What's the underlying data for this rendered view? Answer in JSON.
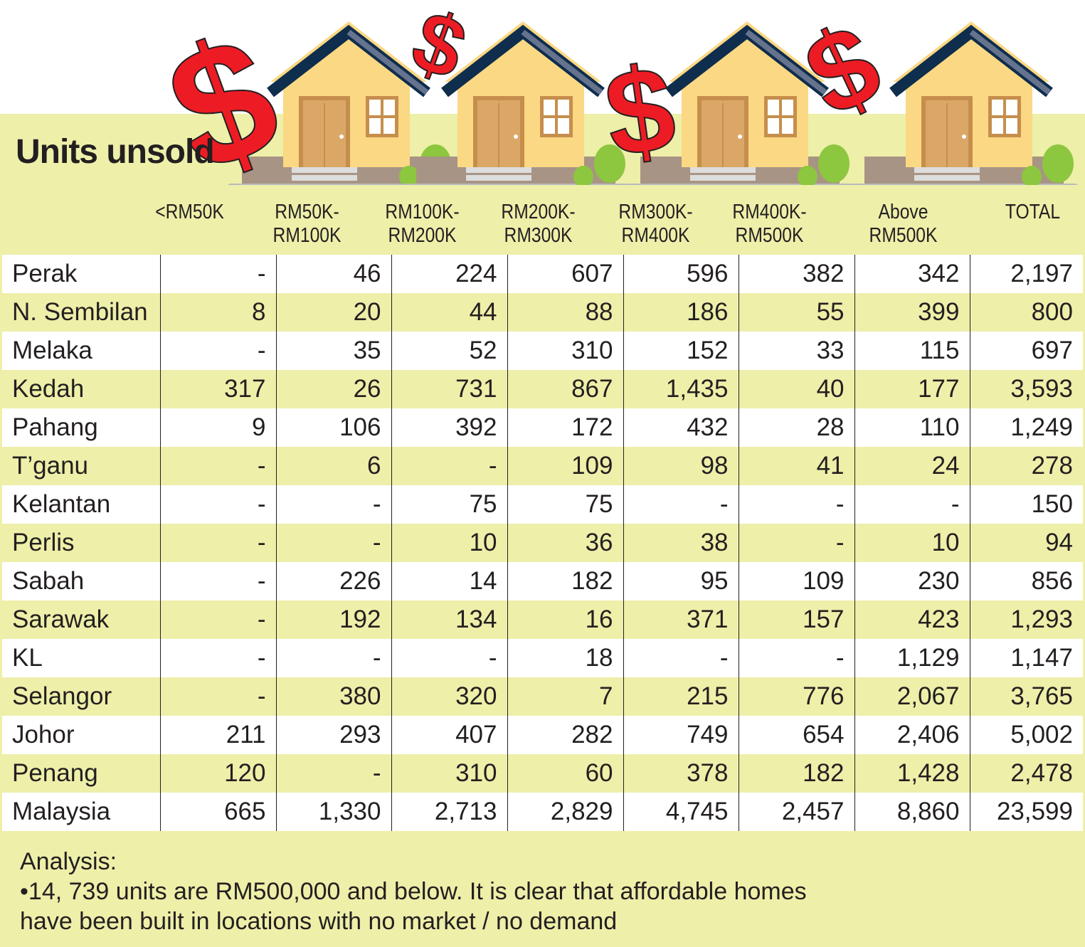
{
  "title": "Units unsold",
  "columns": [
    "<RM50K",
    "RM50K-\nRM100K",
    "RM100K-\nRM200K",
    "RM200K-\nRM300K",
    "RM300K-\nRM400K",
    "RM400K-\nRM500K",
    "Above\nRM500K",
    "TOTAL"
  ],
  "rows": [
    {
      "state": "Perak",
      "values": [
        "-",
        "46",
        "224",
        "607",
        "596",
        "382",
        "342",
        "2,197"
      ]
    },
    {
      "state": "N. Sembilan",
      "values": [
        "8",
        "20",
        "44",
        "88",
        "186",
        "55",
        "399",
        "800"
      ]
    },
    {
      "state": "Melaka",
      "values": [
        "-",
        "35",
        "52",
        "310",
        "152",
        "33",
        "115",
        "697"
      ]
    },
    {
      "state": "Kedah",
      "values": [
        "317",
        "26",
        "731",
        "867",
        "1,435",
        "40",
        "177",
        "3,593"
      ]
    },
    {
      "state": "Pahang",
      "values": [
        "9",
        "106",
        "392",
        "172",
        "432",
        "28",
        "110",
        "1,249"
      ]
    },
    {
      "state": "T’ganu",
      "values": [
        "-",
        "6",
        "-",
        "109",
        "98",
        "41",
        "24",
        "278"
      ]
    },
    {
      "state": "Kelantan",
      "values": [
        "-",
        "-",
        "75",
        "75",
        "-",
        "-",
        "-",
        "150"
      ]
    },
    {
      "state": "Perlis",
      "values": [
        "-",
        "-",
        "10",
        "36",
        "38",
        "-",
        "10",
        "94"
      ]
    },
    {
      "state": "Sabah",
      "values": [
        "-",
        "226",
        "14",
        "182",
        "95",
        "109",
        "230",
        "856"
      ]
    },
    {
      "state": "Sarawak",
      "values": [
        "-",
        "192",
        "134",
        "16",
        "371",
        "157",
        "423",
        "1,293"
      ]
    },
    {
      "state": "KL",
      "values": [
        "-",
        "-",
        "-",
        "18",
        "-",
        "-",
        "1,129",
        "1,147"
      ]
    },
    {
      "state": "Selangor",
      "values": [
        "-",
        "380",
        "320",
        "7",
        "215",
        "776",
        "2,067",
        "3,765"
      ]
    },
    {
      "state": "Johor",
      "values": [
        "211",
        "293",
        "407",
        "282",
        "749",
        "654",
        "2,406",
        "5,002"
      ]
    },
    {
      "state": "Penang",
      "values": [
        "120",
        "-",
        "310",
        "60",
        "378",
        "182",
        "1,428",
        "2,478"
      ]
    },
    {
      "state": "Malaysia",
      "values": [
        "665",
        "1,330",
        "2,713",
        "2,829",
        "4,745",
        "2,457",
        "8,860",
        "23,599"
      ]
    }
  ],
  "analysis": {
    "heading": "Analysis:",
    "line1": "•14, 739 units are RM500,000 and below. It is clear that affordable homes",
    "line2": "have been built in locations with no market / no demand"
  },
  "colors": {
    "panel": "#eeefa9",
    "dollar": "#ed1c24",
    "roof": "#0f2d4d",
    "wall": "#fbd883"
  }
}
